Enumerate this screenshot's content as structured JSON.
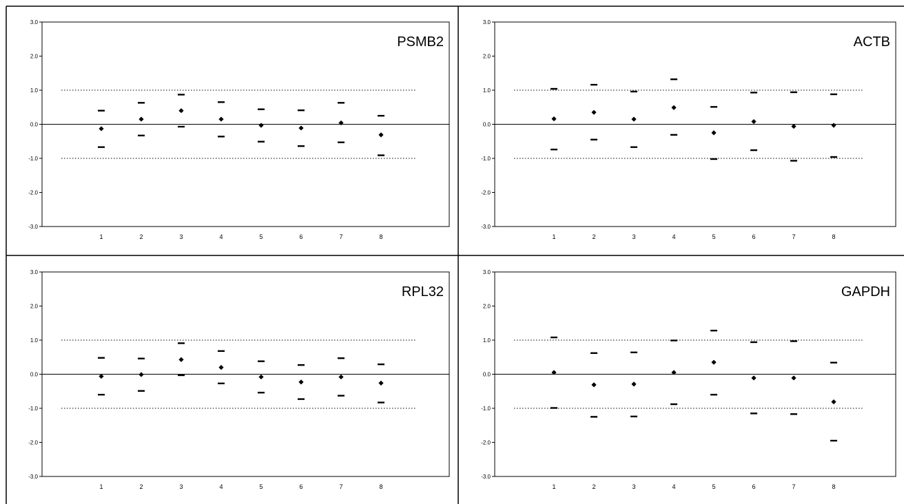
{
  "chart_data": [
    {
      "type": "scatter",
      "title": "PSMB2",
      "categories": [
        "1",
        "2",
        "3",
        "4",
        "5",
        "6",
        "7",
        "8"
      ],
      "ylim": [
        -3.0,
        3.0
      ],
      "yticks": [
        "3.0",
        "2.0",
        "1.0",
        "0.0",
        "-1.0",
        "-2.0",
        "-3.0"
      ],
      "reference_lines": [
        1.0,
        0.0,
        -1.0
      ],
      "series": [
        {
          "marker": "diamond",
          "values": [
            -0.13,
            0.15,
            0.4,
            0.15,
            -0.03,
            -0.11,
            0.04,
            -0.31
          ]
        },
        {
          "marker": "dash",
          "values": [
            0.4,
            0.63,
            0.87,
            0.65,
            0.44,
            0.41,
            0.63,
            0.25
          ]
        },
        {
          "marker": "dash",
          "values": [
            -0.67,
            -0.33,
            -0.07,
            -0.36,
            -0.51,
            -0.64,
            -0.53,
            -0.91
          ]
        }
      ]
    },
    {
      "type": "scatter",
      "title": "ACTB",
      "categories": [
        "1",
        "2",
        "3",
        "4",
        "5",
        "6",
        "7",
        "8"
      ],
      "ylim": [
        -3.0,
        3.0
      ],
      "yticks": [
        "3.0",
        "2.0",
        "1.0",
        "0.0",
        "-1.0",
        "-2.0",
        "-3.0"
      ],
      "reference_lines": [
        1.0,
        0.0,
        -1.0
      ],
      "series": [
        {
          "marker": "diamond",
          "values": [
            0.16,
            0.35,
            0.15,
            0.49,
            -0.25,
            0.08,
            -0.06,
            -0.03
          ]
        },
        {
          "marker": "dash",
          "values": [
            1.04,
            1.16,
            0.96,
            1.32,
            0.51,
            0.93,
            0.94,
            0.88
          ]
        },
        {
          "marker": "dash",
          "values": [
            -0.74,
            -0.45,
            -0.67,
            -0.31,
            -1.02,
            -0.76,
            -1.07,
            -0.96
          ]
        }
      ]
    },
    {
      "type": "scatter",
      "title": "RPL32",
      "categories": [
        "1",
        "2",
        "3",
        "4",
        "5",
        "6",
        "7",
        "8"
      ],
      "ylim": [
        -3.0,
        3.0
      ],
      "yticks": [
        "3.0",
        "2.0",
        "1.0",
        "0.0",
        "-1.0",
        "-2.0",
        "-3.0"
      ],
      "reference_lines": [
        1.0,
        0.0,
        -1.0
      ],
      "series": [
        {
          "marker": "diamond",
          "values": [
            -0.06,
            -0.01,
            0.43,
            0.2,
            -0.08,
            -0.23,
            -0.08,
            -0.26
          ]
        },
        {
          "marker": "dash",
          "values": [
            0.48,
            0.46,
            0.91,
            0.68,
            0.38,
            0.27,
            0.47,
            0.29
          ]
        },
        {
          "marker": "dash",
          "values": [
            -0.6,
            -0.49,
            -0.03,
            -0.27,
            -0.54,
            -0.73,
            -0.63,
            -0.83
          ]
        }
      ]
    },
    {
      "type": "scatter",
      "title": "GAPDH",
      "categories": [
        "1",
        "2",
        "3",
        "4",
        "5",
        "6",
        "7",
        "8"
      ],
      "ylim": [
        -3.0,
        3.0
      ],
      "yticks": [
        "3.0",
        "2.0",
        "1.0",
        "0.0",
        "-1.0",
        "-2.0",
        "-3.0"
      ],
      "reference_lines": [
        1.0,
        0.0,
        -1.0
      ],
      "series": [
        {
          "marker": "diamond",
          "values": [
            0.05,
            -0.31,
            -0.29,
            0.05,
            0.35,
            -0.11,
            -0.11,
            -0.81
          ]
        },
        {
          "marker": "dash",
          "values": [
            1.08,
            0.62,
            0.64,
            0.99,
            1.28,
            0.94,
            0.97,
            0.34
          ]
        },
        {
          "marker": "dash",
          "values": [
            -0.99,
            -1.25,
            -1.24,
            -0.88,
            -0.6,
            -1.15,
            -1.17,
            -1.95
          ]
        }
      ]
    }
  ]
}
